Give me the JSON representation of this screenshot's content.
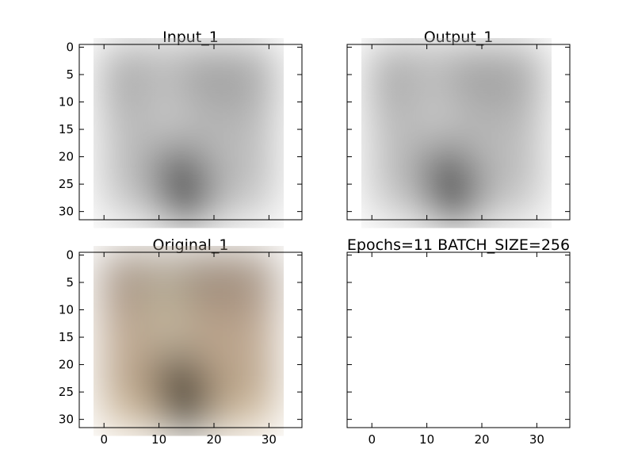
{
  "chart_data": [
    {
      "type": "image",
      "title": "Input_1",
      "image": "grayscale-bird-input",
      "colormap": "gray",
      "xlim": [
        -4.5,
        36
      ],
      "ylim": [
        31.5,
        -0.5
      ],
      "x_ticks": [
        0,
        10,
        20,
        30
      ],
      "y_ticks": [
        0,
        5,
        10,
        15,
        20,
        25,
        30
      ],
      "show_xticklabels": false,
      "show_yticklabels": true
    },
    {
      "type": "image",
      "title": "Output_1",
      "image": "grayscale-bird-output",
      "colormap": "gray",
      "xlim": [
        -4.5,
        36
      ],
      "ylim": [
        31.5,
        -0.5
      ],
      "x_ticks": [
        0,
        10,
        20,
        30
      ],
      "y_ticks": [
        0,
        5,
        10,
        15,
        20,
        25,
        30
      ],
      "show_xticklabels": false,
      "show_yticklabels": false
    },
    {
      "type": "image",
      "title": "Original_1",
      "image": "color-bird-original",
      "colormap": "rgb",
      "xlim": [
        -4.5,
        36
      ],
      "ylim": [
        31.5,
        -0.5
      ],
      "x_ticks": [
        0,
        10,
        20,
        30
      ],
      "y_ticks": [
        0,
        5,
        10,
        15,
        20,
        25,
        30
      ],
      "show_xticklabels": true,
      "show_yticklabels": true
    },
    {
      "type": "image",
      "title": "Epochs=11 BATCH_SIZE=256",
      "image": "",
      "xlim": [
        -4.5,
        36
      ],
      "ylim": [
        31.5,
        -0.5
      ],
      "x_ticks": [
        0,
        10,
        20,
        30
      ],
      "y_ticks": [
        0,
        5,
        10,
        15,
        20,
        25,
        30
      ],
      "show_xticklabels": true,
      "show_yticklabels": false
    }
  ]
}
